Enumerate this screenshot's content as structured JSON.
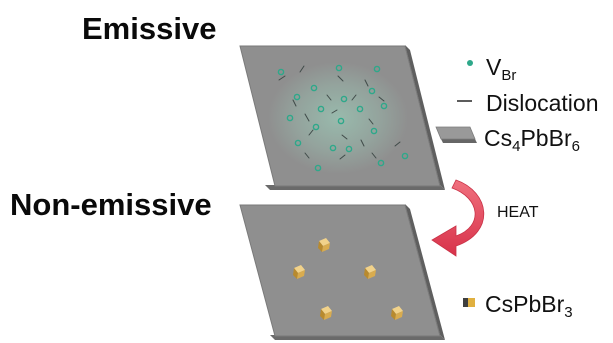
{
  "headings": {
    "top": "Emissive",
    "bottom": "Non-emissive"
  },
  "legend": {
    "vbr": {
      "base": "V",
      "sub": "Br",
      "icon": "vacancy-dot-icon"
    },
    "dislocation": {
      "label": "Dislocation",
      "icon": "dislocation-line-icon"
    },
    "cs4pbbr6": {
      "parts": [
        "Cs",
        "4",
        "PbBr",
        "6"
      ],
      "icon": "slab-icon"
    },
    "cspbbr3": {
      "parts": [
        "CsPbBr",
        "3"
      ],
      "icon": "cube-icon"
    }
  },
  "arrow": {
    "label": "HEAT"
  },
  "colors": {
    "slab_top": "#8c8c8c",
    "slab_edge": "#6a6a6a",
    "vacancy": "#2ea88a",
    "defect_glow": "#9fc8b8",
    "nanocrystal": "#d8b25a",
    "arrow": "#e0475a"
  }
}
